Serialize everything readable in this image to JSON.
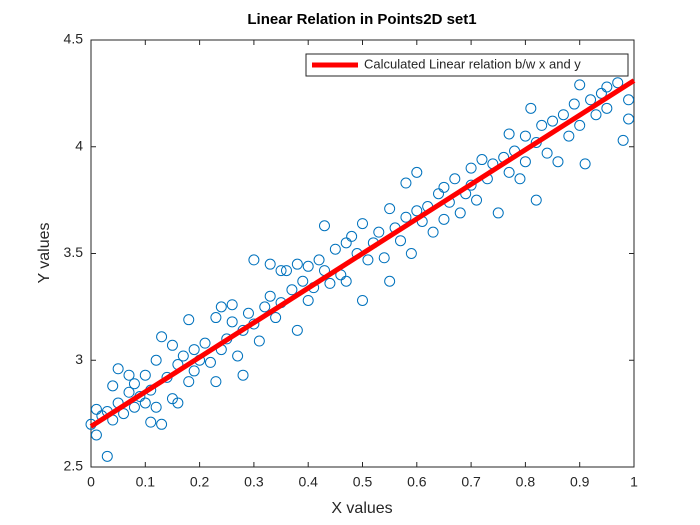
{
  "chart_data": {
    "type": "scatter",
    "title": "Linear Relation in Points2D set1",
    "x_label": "X values",
    "y_label": "Y values",
    "xlim": [
      0,
      1
    ],
    "ylim": [
      2.5,
      4.5
    ],
    "xticks": [
      0,
      0.1,
      0.2,
      0.3,
      0.4,
      0.5,
      0.6,
      0.7,
      0.8,
      0.9,
      1
    ],
    "yticks": [
      2.5,
      3,
      3.5,
      4,
      4.5
    ],
    "grid": false,
    "legend_location": "northeast",
    "series": [
      {
        "type": "scatter",
        "marker": "circle",
        "color": "#0072bd",
        "x": [
          0.0,
          0.01,
          0.01,
          0.02,
          0.03,
          0.03,
          0.04,
          0.04,
          0.05,
          0.05,
          0.06,
          0.07,
          0.07,
          0.08,
          0.08,
          0.09,
          0.1,
          0.1,
          0.11,
          0.11,
          0.12,
          0.12,
          0.13,
          0.13,
          0.14,
          0.15,
          0.15,
          0.16,
          0.16,
          0.17,
          0.18,
          0.18,
          0.19,
          0.19,
          0.2,
          0.21,
          0.22,
          0.23,
          0.23,
          0.24,
          0.24,
          0.25,
          0.26,
          0.26,
          0.27,
          0.28,
          0.28,
          0.29,
          0.3,
          0.3,
          0.31,
          0.32,
          0.33,
          0.33,
          0.34,
          0.35,
          0.35,
          0.36,
          0.37,
          0.38,
          0.38,
          0.39,
          0.4,
          0.4,
          0.41,
          0.42,
          0.43,
          0.43,
          0.44,
          0.45,
          0.46,
          0.47,
          0.47,
          0.48,
          0.49,
          0.5,
          0.5,
          0.51,
          0.52,
          0.53,
          0.54,
          0.55,
          0.55,
          0.56,
          0.57,
          0.58,
          0.58,
          0.59,
          0.6,
          0.6,
          0.61,
          0.62,
          0.63,
          0.64,
          0.65,
          0.65,
          0.66,
          0.67,
          0.68,
          0.69,
          0.7,
          0.7,
          0.71,
          0.72,
          0.73,
          0.74,
          0.75,
          0.76,
          0.77,
          0.77,
          0.78,
          0.79,
          0.8,
          0.8,
          0.81,
          0.82,
          0.82,
          0.83,
          0.84,
          0.85,
          0.86,
          0.87,
          0.88,
          0.89,
          0.9,
          0.9,
          0.91,
          0.92,
          0.93,
          0.94,
          0.95,
          0.95,
          0.96,
          0.97,
          0.98,
          0.99,
          0.99
        ],
        "values": [
          2.7,
          2.65,
          2.77,
          2.74,
          2.55,
          2.76,
          2.72,
          2.88,
          2.96,
          2.8,
          2.75,
          2.93,
          2.85,
          2.78,
          2.89,
          2.83,
          2.8,
          2.93,
          2.71,
          2.86,
          3.0,
          2.78,
          3.11,
          2.7,
          2.92,
          2.82,
          3.07,
          2.98,
          2.8,
          3.02,
          3.19,
          2.9,
          3.05,
          2.95,
          3.0,
          3.08,
          2.99,
          2.9,
          3.2,
          3.25,
          3.05,
          3.1,
          3.18,
          3.26,
          3.02,
          2.93,
          3.14,
          3.22,
          3.47,
          3.17,
          3.09,
          3.25,
          3.45,
          3.3,
          3.2,
          3.42,
          3.27,
          3.42,
          3.33,
          3.14,
          3.45,
          3.37,
          3.44,
          3.28,
          3.34,
          3.47,
          3.63,
          3.42,
          3.36,
          3.52,
          3.4,
          3.55,
          3.37,
          3.58,
          3.5,
          3.28,
          3.64,
          3.47,
          3.55,
          3.6,
          3.48,
          3.37,
          3.71,
          3.62,
          3.56,
          3.83,
          3.67,
          3.5,
          3.88,
          3.7,
          3.65,
          3.72,
          3.6,
          3.78,
          3.81,
          3.66,
          3.74,
          3.85,
          3.69,
          3.78,
          3.9,
          3.82,
          3.75,
          3.94,
          3.85,
          3.92,
          3.69,
          3.95,
          4.06,
          3.88,
          3.98,
          3.85,
          4.05,
          3.93,
          4.18,
          3.75,
          4.02,
          4.1,
          3.97,
          4.12,
          3.93,
          4.15,
          4.05,
          4.2,
          4.29,
          4.1,
          3.92,
          4.22,
          4.15,
          4.25,
          4.28,
          4.18,
          4.36,
          4.3,
          4.03,
          4.13,
          4.22
        ]
      },
      {
        "type": "line",
        "name": "Calculated Linear relation b/w x and y",
        "color": "#ff0000",
        "x": [
          0,
          1
        ],
        "values": [
          2.69,
          4.31
        ]
      }
    ]
  }
}
